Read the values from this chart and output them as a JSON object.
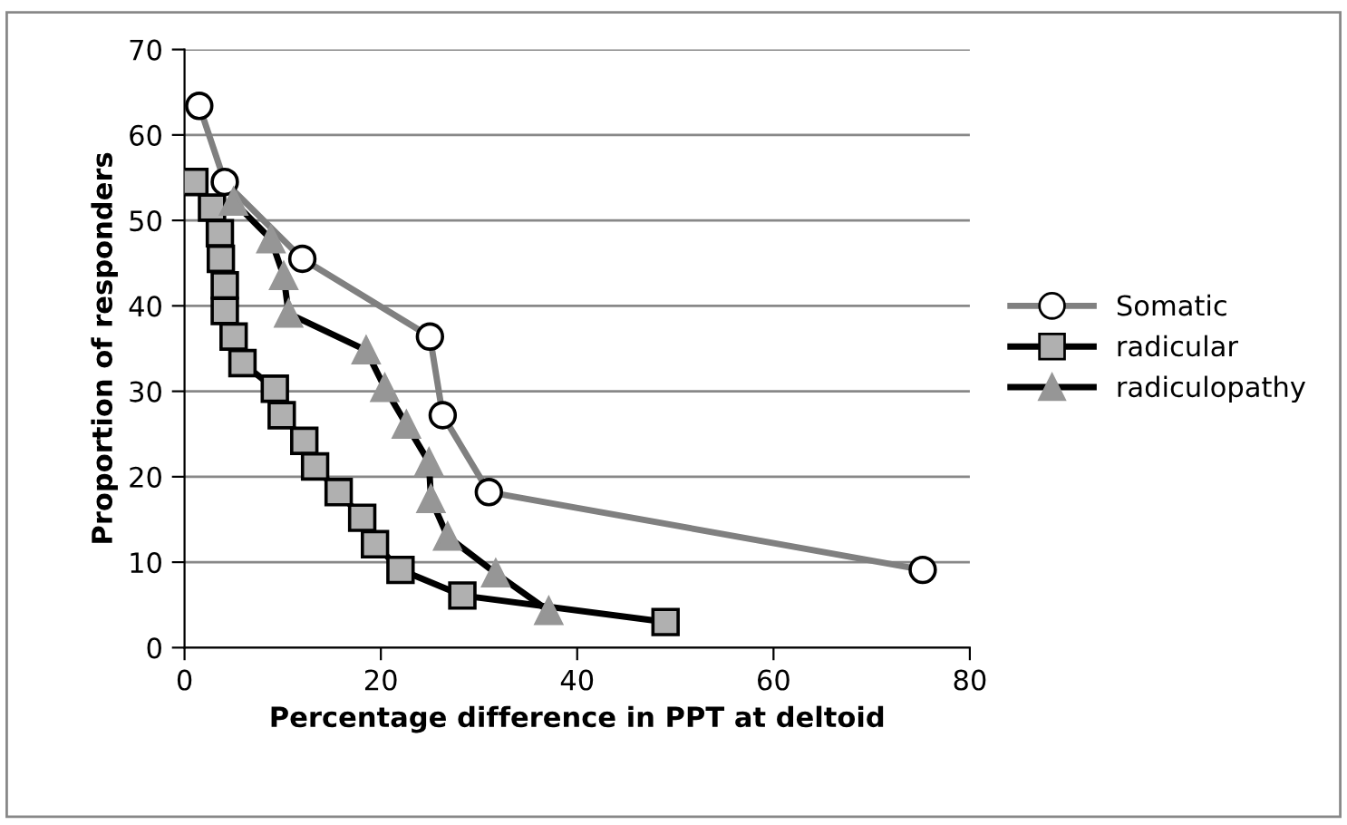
{
  "chart_data": {
    "type": "line",
    "xlabel": "Percentage difference in PPT at deltoid",
    "ylabel": "Proportion of responders",
    "xlim": [
      0,
      80
    ],
    "xticks": [
      0,
      20,
      40,
      60,
      80
    ],
    "ylim": [
      0,
      70
    ],
    "yticks": [
      0,
      10,
      20,
      30,
      40,
      50,
      60,
      70
    ],
    "grid": "y",
    "legend": "right",
    "line_style": "solid",
    "series": [
      {
        "name": "Somatic",
        "color": "#808080",
        "marker": "circle",
        "x": [
          1.5,
          4.1,
          12,
          25,
          26.3,
          31,
          75.2
        ],
        "values": [
          63.4,
          54.5,
          45.5,
          36.4,
          27.2,
          18.2,
          9.1
        ]
      },
      {
        "name": "radicular",
        "color": "#000000",
        "marker": "square",
        "x": [
          1.0,
          2.8,
          3.6,
          3.7,
          4.1,
          4.1,
          5.0,
          5.9,
          9.2,
          9.9,
          12.2,
          13.3,
          15.7,
          18.1,
          19.4,
          22,
          28.3,
          49
        ],
        "values": [
          54.5,
          51.5,
          48.5,
          45.5,
          42.4,
          39.4,
          36.4,
          33.3,
          30.3,
          27.2,
          24.2,
          21.2,
          18.2,
          15.2,
          12.1,
          9.1,
          6.1,
          3.0
        ]
      },
      {
        "name": "radiculopathy",
        "color": "#000000",
        "marker": "triangle",
        "x": [
          5,
          8.8,
          10.1,
          10.6,
          18.5,
          20.4,
          22.6,
          24.9,
          25.1,
          26.8,
          31.7,
          37.1
        ],
        "values": [
          52.2,
          47.8,
          43.5,
          39.1,
          34.8,
          30.4,
          26.1,
          21.7,
          17.4,
          13.0,
          8.7,
          4.3
        ]
      }
    ]
  }
}
